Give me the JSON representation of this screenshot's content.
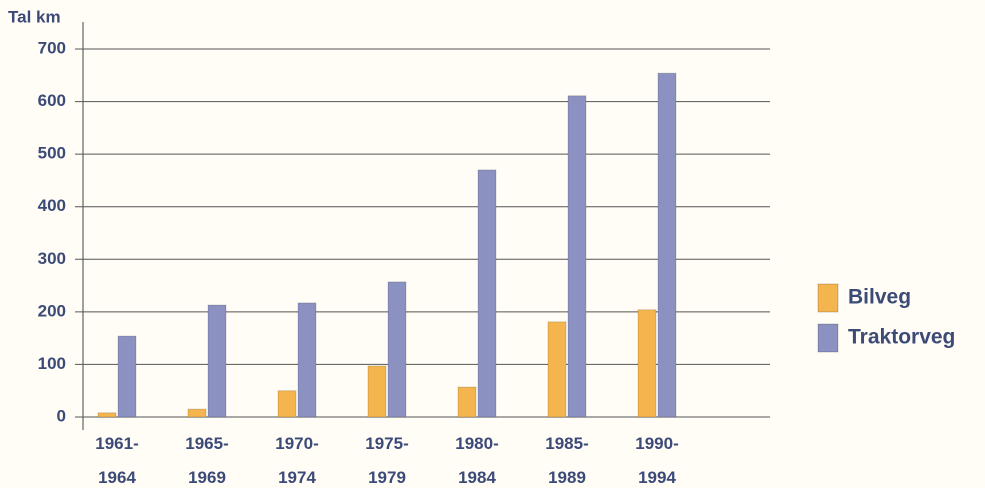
{
  "chart_data": {
    "type": "bar",
    "y_label": "Tal km",
    "categories": [
      "1961-1964",
      "1965-1969",
      "1970-1974",
      "1975-1979",
      "1980-1984",
      "1985-1989",
      "1990-1994"
    ],
    "series": [
      {
        "name": "Bilveg",
        "color": "#f4b54e",
        "values": [
          8,
          15,
          50,
          97,
          57,
          181,
          204
        ]
      },
      {
        "name": "Traktorveg",
        "color": "#8b92c2",
        "values": [
          154,
          213,
          217,
          257,
          470,
          611,
          654
        ]
      }
    ],
    "ylim": [
      0,
      700
    ],
    "yticks": [
      0,
      100,
      200,
      300,
      400,
      500,
      600,
      700
    ],
    "grid": true
  }
}
